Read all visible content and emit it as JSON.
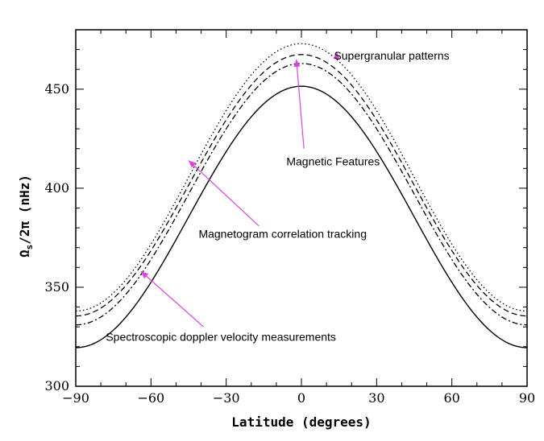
{
  "chart_data": {
    "type": "line",
    "title": "",
    "xlabel": "Latitude (degrees)",
    "ylabel_main": "Ω",
    "ylabel_sub": "s",
    "ylabel_rest": "/2π (nHz)",
    "xlim": [
      -90,
      90
    ],
    "ylim": [
      300,
      480
    ],
    "x_ticks": [
      -90,
      -60,
      -30,
      0,
      30,
      60,
      90
    ],
    "x_tick_labels": [
      "−90",
      "−60",
      "−30",
      "0",
      "30",
      "60",
      "90"
    ],
    "y_ticks": [
      300,
      350,
      400,
      450
    ],
    "y_tick_labels": [
      "300",
      "350",
      "400",
      "450"
    ],
    "series": [
      {
        "name": "Spectroscopic doppler velocity measurements",
        "style": "solid",
        "A": 451.5,
        "B": -132.0,
        "color": "#000000"
      },
      {
        "name": "Magnetogram correlation tracking",
        "style": "dashdot",
        "A": 463.0,
        "B": -132.0,
        "color": "#000000"
      },
      {
        "name": "Magnetic Features",
        "style": "dashed",
        "A": 467.5,
        "B": -132.0,
        "color": "#000000"
      },
      {
        "name": "Supergranular patterns",
        "style": "dotted",
        "A": 473.0,
        "B": -135.0,
        "color": "#000000"
      }
    ],
    "annotations": [
      {
        "text": "Supergranular patterns",
        "text_x": 13,
        "text_y": 465,
        "arrow_from": [
          14,
          467.5
        ],
        "arrow_to": [
          14,
          469
        ],
        "anchor": "start"
      },
      {
        "text": "Magnetic Features",
        "text_x": -6,
        "text_y": 411.5,
        "arrow_from": [
          1,
          420
        ],
        "arrow_to": [
          -2,
          465
        ],
        "anchor": "start"
      },
      {
        "text": "Magnetogram correlation tracking",
        "text_x": -41,
        "text_y": 375,
        "arrow_from": [
          -17,
          381
        ],
        "arrow_to": [
          -45,
          414
        ],
        "anchor": "start"
      },
      {
        "text": "Spectroscopic doppler velocity measurements",
        "text_x": -78,
        "text_y": 323,
        "arrow_from": [
          -39,
          330
        ],
        "arrow_to": [
          -64,
          358
        ],
        "anchor": "start"
      }
    ],
    "arrow_color": "#e040e0",
    "grid": false
  }
}
